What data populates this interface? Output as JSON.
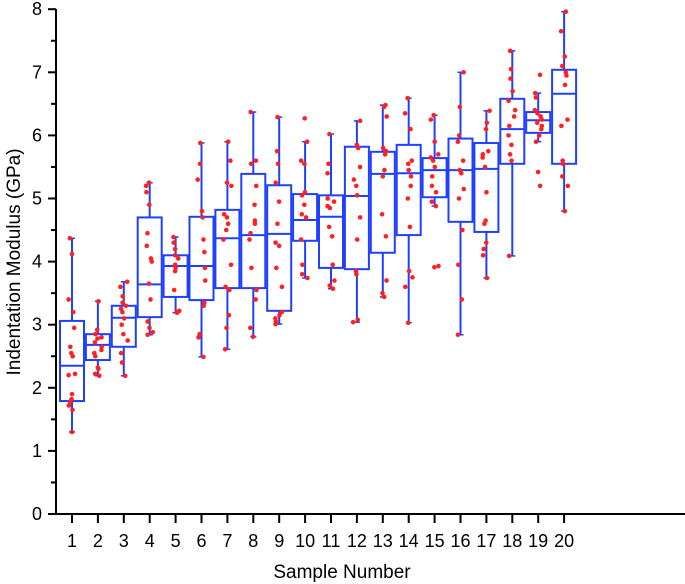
{
  "chart_data": {
    "type": "box",
    "title": "",
    "xlabel": "Sample Number",
    "ylabel": "Indentation Modulus (GPa)",
    "ylim": [
      0,
      8
    ],
    "yticks": [
      0,
      1,
      2,
      3,
      4,
      5,
      6,
      7,
      8
    ],
    "grid": false,
    "legend": null,
    "colors": {
      "box": "#2040ff",
      "points": "#ff2020",
      "axis": "#000000"
    },
    "categories": [
      "1",
      "2",
      "3",
      "4",
      "5",
      "6",
      "7",
      "8",
      "9",
      "10",
      "11",
      "12",
      "13",
      "14",
      "15",
      "16",
      "17",
      "18",
      "19",
      "20"
    ],
    "boxes": [
      {
        "sample": 1,
        "whisker_low": 1.3,
        "q1": 1.79,
        "median": 2.35,
        "q3": 3.06,
        "whisker_high": 4.37,
        "outliers": []
      },
      {
        "sample": 2,
        "whisker_low": 2.19,
        "q1": 2.44,
        "median": 2.68,
        "q3": 2.85,
        "whisker_high": 3.37,
        "outliers": []
      },
      {
        "sample": 3,
        "whisker_low": 2.19,
        "q1": 2.65,
        "median": 3.11,
        "q3": 3.3,
        "whisker_high": 3.68,
        "outliers": []
      },
      {
        "sample": 4,
        "whisker_low": 2.84,
        "q1": 3.12,
        "median": 3.64,
        "q3": 4.7,
        "whisker_high": 5.25,
        "outliers": []
      },
      {
        "sample": 5,
        "whisker_low": 3.19,
        "q1": 3.44,
        "median": 3.93,
        "q3": 4.1,
        "whisker_high": 4.39,
        "outliers": []
      },
      {
        "sample": 6,
        "whisker_low": 2.49,
        "q1": 3.39,
        "median": 3.93,
        "q3": 4.71,
        "whisker_high": 5.88,
        "outliers": []
      },
      {
        "sample": 7,
        "whisker_low": 2.61,
        "q1": 3.58,
        "median": 4.37,
        "q3": 4.82,
        "whisker_high": 5.9,
        "outliers": []
      },
      {
        "sample": 8,
        "whisker_low": 2.81,
        "q1": 3.58,
        "median": 4.42,
        "q3": 5.39,
        "whisker_high": 6.37,
        "outliers": []
      },
      {
        "sample": 9,
        "whisker_low": 3.01,
        "q1": 3.22,
        "median": 4.44,
        "q3": 5.21,
        "whisker_high": 6.29,
        "outliers": []
      },
      {
        "sample": 10,
        "whisker_low": 3.74,
        "q1": 4.33,
        "median": 4.66,
        "q3": 5.07,
        "whisker_high": 5.9,
        "outliers": [
          6.27
        ]
      },
      {
        "sample": 11,
        "whisker_low": 3.57,
        "q1": 3.9,
        "median": 4.71,
        "q3": 5.05,
        "whisker_high": 6.02,
        "outliers": []
      },
      {
        "sample": 12,
        "whisker_low": 3.04,
        "q1": 3.88,
        "median": 5.04,
        "q3": 5.82,
        "whisker_high": 6.23,
        "outliers": []
      },
      {
        "sample": 13,
        "whisker_low": 3.44,
        "q1": 4.14,
        "median": 5.39,
        "q3": 5.74,
        "whisker_high": 6.48,
        "outliers": []
      },
      {
        "sample": 14,
        "whisker_low": 3.03,
        "q1": 4.42,
        "median": 5.4,
        "q3": 5.85,
        "whisker_high": 6.59,
        "outliers": []
      },
      {
        "sample": 15,
        "whisker_low": 4.88,
        "q1": 5.02,
        "median": 5.45,
        "q3": 5.64,
        "whisker_high": 6.32,
        "outliers": [
          3.91,
          3.93
        ]
      },
      {
        "sample": 16,
        "whisker_low": 2.84,
        "q1": 4.63,
        "median": 5.45,
        "q3": 5.95,
        "whisker_high": 7.0,
        "outliers": []
      },
      {
        "sample": 17,
        "whisker_low": 3.74,
        "q1": 4.47,
        "median": 5.47,
        "q3": 5.88,
        "whisker_high": 6.39,
        "outliers": []
      },
      {
        "sample": 18,
        "whisker_low": 4.09,
        "q1": 5.55,
        "median": 6.1,
        "q3": 6.58,
        "whisker_high": 7.34,
        "outliers": []
      },
      {
        "sample": 19,
        "whisker_low": 5.9,
        "q1": 6.04,
        "median": 6.24,
        "q3": 6.37,
        "whisker_high": 6.67,
        "outliers": [
          6.96,
          5.42,
          5.2
        ]
      },
      {
        "sample": 20,
        "whisker_low": 4.8,
        "q1": 5.55,
        "median": 6.66,
        "q3": 7.04,
        "whisker_high": 7.96,
        "outliers": []
      }
    ],
    "points": [
      [
        1.3,
        1.65,
        1.72,
        1.78,
        1.82,
        1.9,
        2.2,
        2.22,
        2.5,
        2.55,
        2.65,
        2.95,
        3.2,
        3.4,
        4.12,
        4.37
      ],
      [
        2.19,
        2.22,
        2.3,
        2.32,
        2.5,
        2.55,
        2.6,
        2.65,
        2.72,
        2.78,
        2.8,
        2.85,
        2.92,
        3.37
      ],
      [
        2.19,
        2.4,
        2.55,
        2.75,
        2.85,
        3.0,
        3.1,
        3.2,
        3.25,
        3.3,
        3.35,
        3.45,
        3.6,
        3.68
      ],
      [
        2.84,
        2.88,
        2.95,
        3.05,
        3.4,
        3.65,
        4.0,
        4.05,
        4.25,
        4.45,
        4.9,
        5.1,
        5.2,
        5.25
      ],
      [
        3.19,
        3.2,
        3.22,
        3.55,
        3.85,
        3.9,
        3.95,
        4.05,
        4.1,
        4.2,
        4.3,
        4.39
      ],
      [
        2.49,
        2.8,
        2.85,
        3.3,
        3.35,
        3.7,
        3.9,
        4.15,
        4.35,
        4.7,
        4.8,
        5.3,
        5.55,
        5.88
      ],
      [
        2.61,
        2.95,
        3.15,
        3.55,
        3.6,
        3.95,
        4.35,
        4.5,
        4.6,
        4.7,
        4.75,
        5.2,
        5.25,
        5.6,
        5.9
      ],
      [
        2.81,
        2.95,
        3.4,
        3.55,
        3.9,
        4.35,
        4.45,
        4.6,
        4.65,
        4.9,
        5.2,
        5.55,
        5.6,
        6.37
      ],
      [
        3.01,
        3.05,
        3.1,
        3.15,
        3.2,
        3.6,
        3.9,
        4.25,
        4.3,
        4.6,
        4.95,
        5.25,
        5.55,
        5.75,
        6.29
      ],
      [
        3.74,
        3.8,
        3.95,
        4.35,
        4.7,
        4.75,
        4.9,
        5.05,
        5.1,
        5.55,
        5.6,
        5.9,
        6.27
      ],
      [
        3.57,
        3.62,
        3.7,
        3.95,
        4.4,
        4.55,
        4.85,
        4.88,
        4.95,
        5.0,
        5.4,
        5.55,
        6.02
      ],
      [
        3.04,
        3.08,
        3.8,
        3.85,
        4.35,
        4.7,
        5.05,
        5.2,
        5.3,
        5.5,
        5.8,
        5.85,
        6.23
      ],
      [
        3.44,
        3.5,
        3.7,
        4.4,
        4.75,
        5.35,
        5.45,
        5.7,
        5.75,
        5.8,
        6.3,
        6.45,
        6.48
      ],
      [
        3.03,
        3.6,
        3.75,
        3.85,
        4.55,
        5.0,
        5.2,
        5.35,
        5.45,
        5.55,
        5.6,
        6.1,
        6.35,
        6.59
      ],
      [
        3.91,
        3.93,
        4.88,
        4.95,
        5.1,
        5.2,
        5.35,
        5.5,
        5.6,
        5.65,
        5.7,
        5.9,
        6.25,
        6.32
      ],
      [
        2.84,
        3.4,
        3.95,
        4.5,
        5.0,
        5.15,
        5.4,
        5.45,
        5.6,
        5.9,
        6.0,
        6.45,
        7.0
      ],
      [
        3.74,
        4.1,
        4.2,
        4.3,
        4.6,
        4.65,
        5.1,
        5.5,
        5.65,
        5.7,
        5.75,
        6.1,
        6.2,
        6.39
      ],
      [
        4.09,
        5.6,
        5.7,
        5.85,
        6.0,
        6.15,
        6.3,
        6.4,
        6.55,
        6.7,
        6.9,
        7.05,
        7.34
      ],
      [
        5.2,
        5.42,
        5.9,
        6.0,
        6.1,
        6.15,
        6.2,
        6.25,
        6.3,
        6.35,
        6.4,
        6.6,
        6.67,
        6.96
      ],
      [
        4.8,
        5.2,
        5.35,
        5.55,
        5.6,
        6.15,
        6.25,
        6.8,
        6.95,
        7.0,
        7.1,
        7.25,
        7.65,
        7.96
      ]
    ]
  }
}
